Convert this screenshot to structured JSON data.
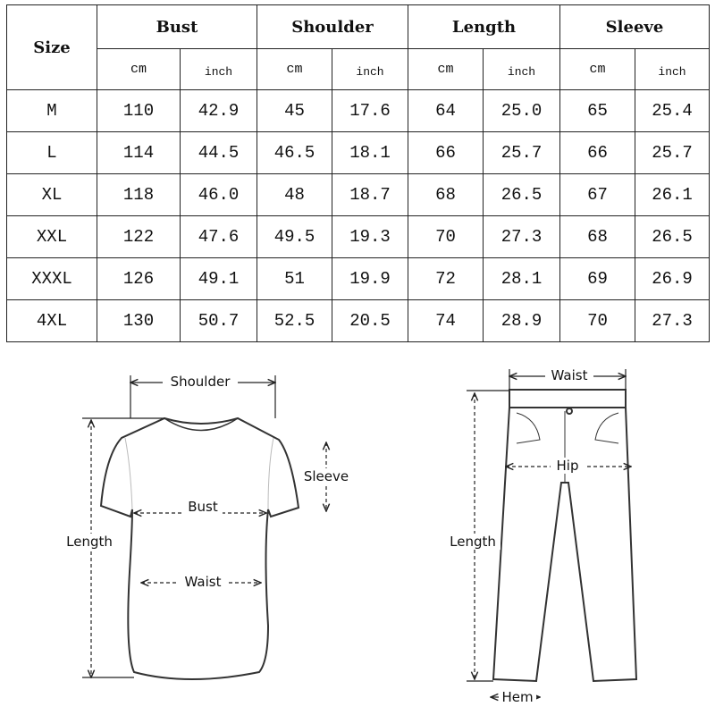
{
  "table": {
    "size_header": "Size",
    "groups": [
      "Bust",
      "Shoulder",
      "Length",
      "Sleeve"
    ],
    "units": {
      "cm": "cm",
      "inch": "inch"
    },
    "rows": [
      {
        "size": "M",
        "values": [
          "110",
          "42.9",
          "45",
          "17.6",
          "64",
          "25.0",
          "65",
          "25.4"
        ]
      },
      {
        "size": "L",
        "values": [
          "114",
          "44.5",
          "46.5",
          "18.1",
          "66",
          "25.7",
          "66",
          "25.7"
        ]
      },
      {
        "size": "XL",
        "values": [
          "118",
          "46.0",
          "48",
          "18.7",
          "68",
          "26.5",
          "67",
          "26.1"
        ]
      },
      {
        "size": "XXL",
        "values": [
          "122",
          "47.6",
          "49.5",
          "19.3",
          "70",
          "27.3",
          "68",
          "26.5"
        ]
      },
      {
        "size": "XXXL",
        "values": [
          "126",
          "49.1",
          "51",
          "19.9",
          "72",
          "28.1",
          "69",
          "26.9"
        ]
      },
      {
        "size": "4XL",
        "values": [
          "130",
          "50.7",
          "52.5",
          "20.5",
          "74",
          "28.9",
          "70",
          "27.3"
        ]
      }
    ]
  },
  "shirt_diagram": {
    "shoulder": "Shoulder",
    "sleeve": "Sleeve",
    "bust": "Bust",
    "length": "Length",
    "waist": "Waist"
  },
  "pants_diagram": {
    "waist": "Waist",
    "hip": "Hip",
    "length": "Length",
    "hem": "Hem"
  }
}
